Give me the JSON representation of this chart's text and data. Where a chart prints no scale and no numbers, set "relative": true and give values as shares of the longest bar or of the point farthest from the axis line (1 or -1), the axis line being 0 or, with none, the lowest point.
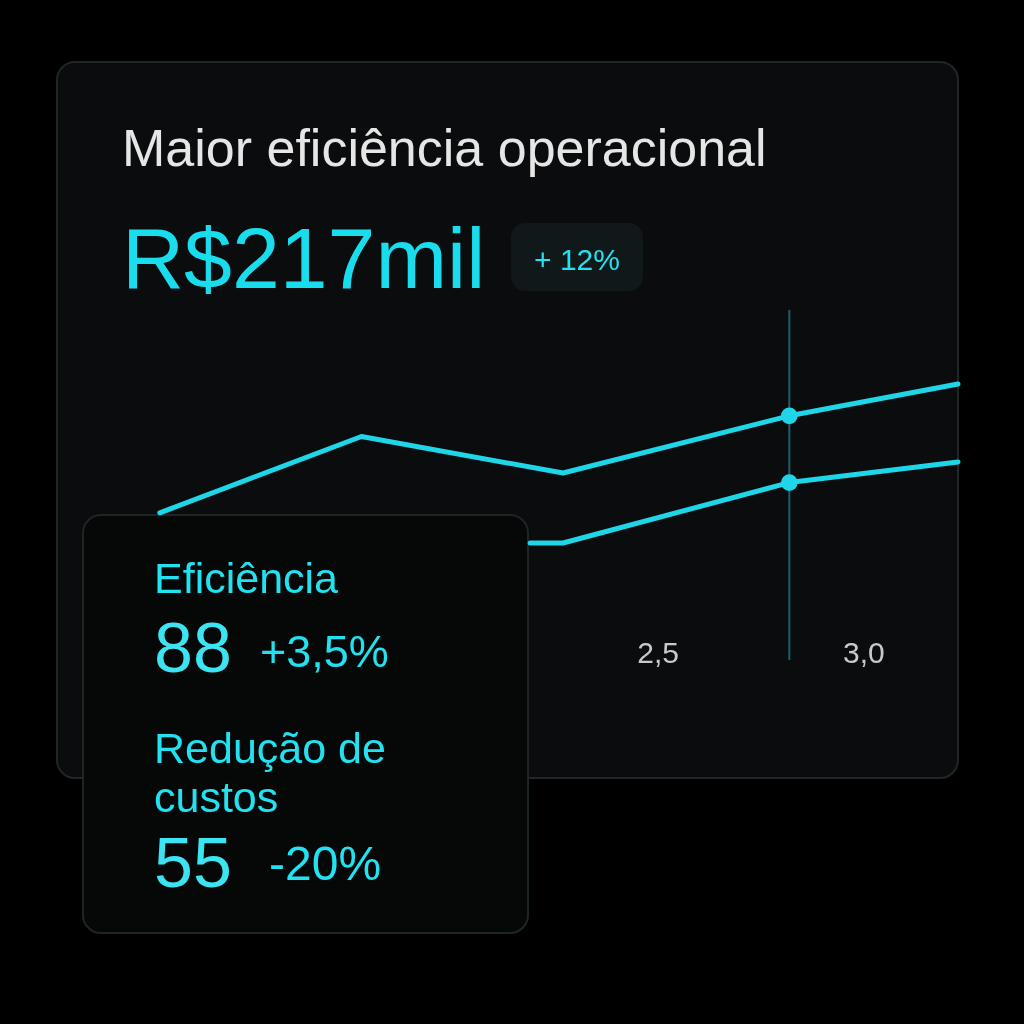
{
  "chart_data": {
    "type": "line",
    "title": "Maior eficiência operacional",
    "subtitle": "R$217mil",
    "annotations": [
      "+ 12%",
      "Eficiência",
      "88",
      "+3,5%",
      "Redução de custos",
      "55",
      "-20%"
    ],
    "relative": true,
    "xlim": [
      1.04,
      3.23
    ],
    "xticks": [
      {
        "value": 2.5,
        "label": "2,5"
      },
      {
        "value": 3.0,
        "label": "3,0"
      }
    ],
    "marker": "none",
    "line_style": "solid",
    "ref_lines": [
      {
        "axis": "x",
        "value": 2.82,
        "color": "#1d5f6a"
      }
    ],
    "series": [
      {
        "color": "#1fd6e8",
        "x": [
          1.29,
          1.78,
          2.27,
          2.82,
          3.23
        ],
        "values": [
          0.19,
          0.67,
          0.44,
          0.8,
          1.0
        ]
      },
      {
        "color": "#1fd6e8",
        "x": [
          2.19,
          2.27,
          2.82,
          3.23
        ],
        "values": [
          0,
          0,
          0.38,
          0.51
        ]
      },
      {
        "type": "scatter",
        "marker": "circle",
        "color": "#1fd6e8",
        "x": [
          2.82,
          2.82
        ],
        "values": [
          0.8,
          0.38
        ]
      }
    ]
  }
}
